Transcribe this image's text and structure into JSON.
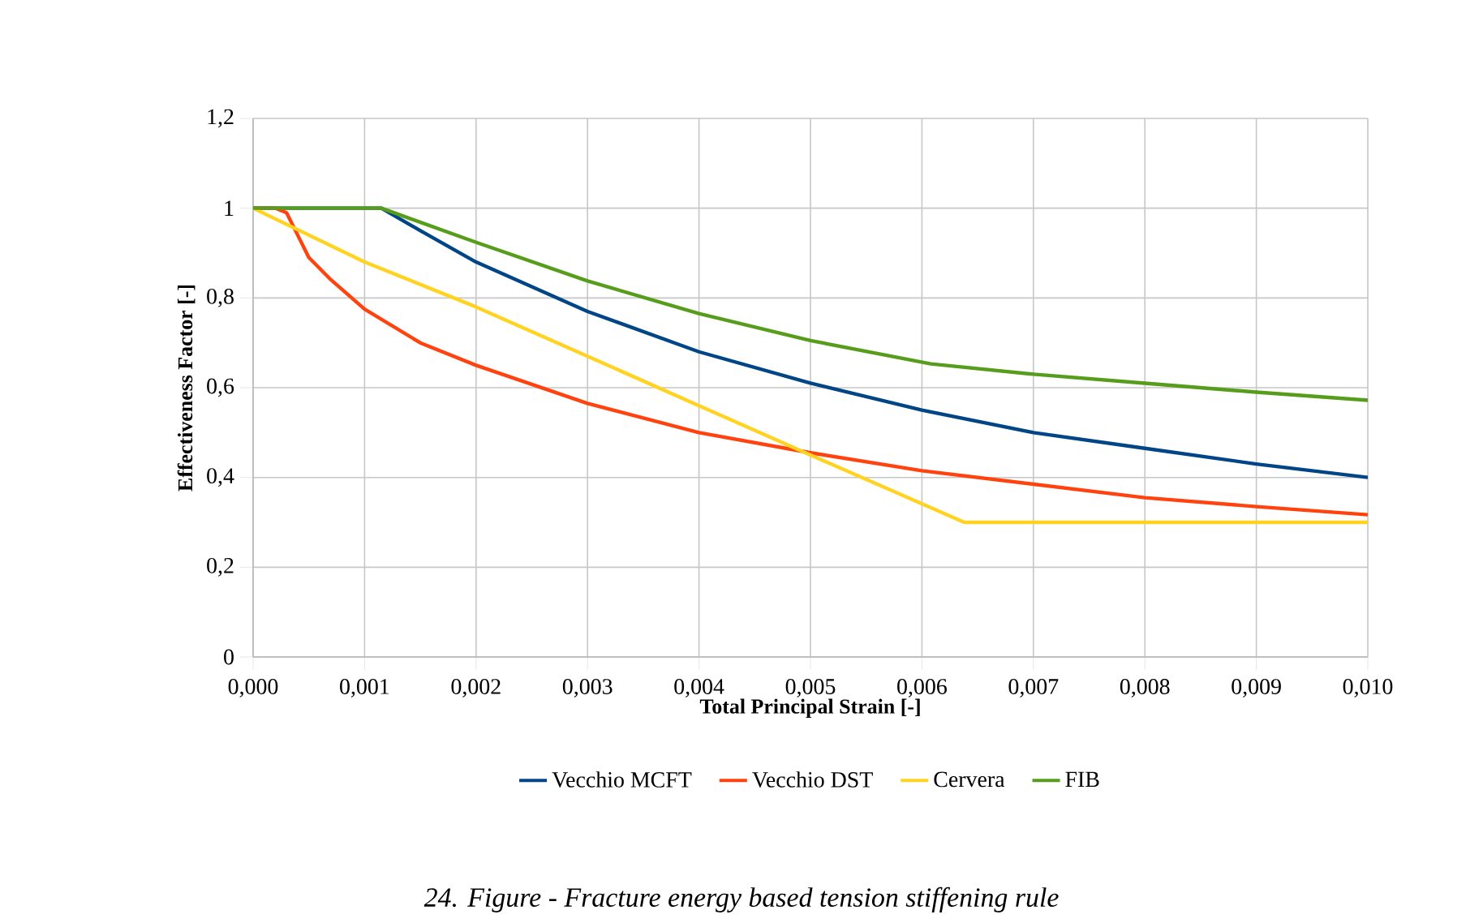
{
  "chart_data": {
    "type": "line",
    "xlabel": "Total Principal Strain [-]",
    "ylabel": "Effectiveness Factor [-]",
    "annotations": [
      "24. Figure - Fracture energy based tension stiffening rule"
    ],
    "xlim": [
      0,
      0.01
    ],
    "ylim": [
      0,
      1.2
    ],
    "xticks": [
      {
        "value": 0,
        "label": "0,000"
      },
      {
        "value": 0.001,
        "label": "0,001"
      },
      {
        "value": 0.002,
        "label": "0,002"
      },
      {
        "value": 0.003,
        "label": "0,003"
      },
      {
        "value": 0.004,
        "label": "0,004"
      },
      {
        "value": 0.005,
        "label": "0,005"
      },
      {
        "value": 0.006,
        "label": "0,006"
      },
      {
        "value": 0.007,
        "label": "0,007"
      },
      {
        "value": 0.008,
        "label": "0,008"
      },
      {
        "value": 0.009,
        "label": "0,009"
      },
      {
        "value": 0.01,
        "label": "0,010"
      }
    ],
    "yticks": [
      0,
      {
        "value": 0.2,
        "label": "0,2"
      },
      {
        "value": 0.4,
        "label": "0,4"
      },
      {
        "value": 0.6,
        "label": "0,6"
      },
      {
        "value": 0.8,
        "label": "0,8"
      },
      1,
      {
        "value": 1.2,
        "label": "1,2"
      }
    ],
    "grid": true,
    "legend": "bottom",
    "marker": "none",
    "line_style": "solid",
    "series": [
      {
        "name": "Vecchio MCFT",
        "color": "#004586",
        "x": [
          0,
          0.00115,
          0.0015,
          0.002,
          0.003,
          0.004,
          0.005,
          0.006,
          0.007,
          0.008,
          0.009,
          0.01
        ],
        "values": [
          1,
          1,
          0.95,
          0.88,
          0.77,
          0.68,
          0.61,
          0.55,
          0.5,
          0.465,
          0.43,
          0.4
        ]
      },
      {
        "name": "Vecchio DST",
        "color": "#ff420e",
        "x": [
          0,
          0.0002,
          0.0003,
          0.0004,
          0.0005,
          0.0007,
          0.001,
          0.0015,
          0.002,
          0.003,
          0.004,
          0.005,
          0.006,
          0.007,
          0.008,
          0.009,
          0.01
        ],
        "values": [
          1,
          1,
          0.99,
          0.94,
          0.89,
          0.84,
          0.775,
          0.7,
          0.65,
          0.565,
          0.5,
          0.455,
          0.415,
          0.385,
          0.355,
          0.335,
          0.317
        ]
      },
      {
        "name": "Cervera",
        "color": "#ffd320",
        "x": [
          0,
          0.001,
          0.002,
          0.003,
          0.004,
          0.005,
          0.00638,
          0.01
        ],
        "values": [
          1,
          0.88,
          0.78,
          0.67,
          0.56,
          0.45,
          0.3,
          0.3
        ]
      },
      {
        "name": "FIB",
        "color": "#579d1c",
        "x": [
          0,
          0.00115,
          0.002,
          0.003,
          0.004,
          0.005,
          0.00608,
          0.007,
          0.008,
          0.009,
          0.01
        ],
        "values": [
          1,
          1,
          0.924,
          0.838,
          0.765,
          0.705,
          0.653,
          0.63,
          0.61,
          0.59,
          0.572
        ]
      }
    ]
  }
}
